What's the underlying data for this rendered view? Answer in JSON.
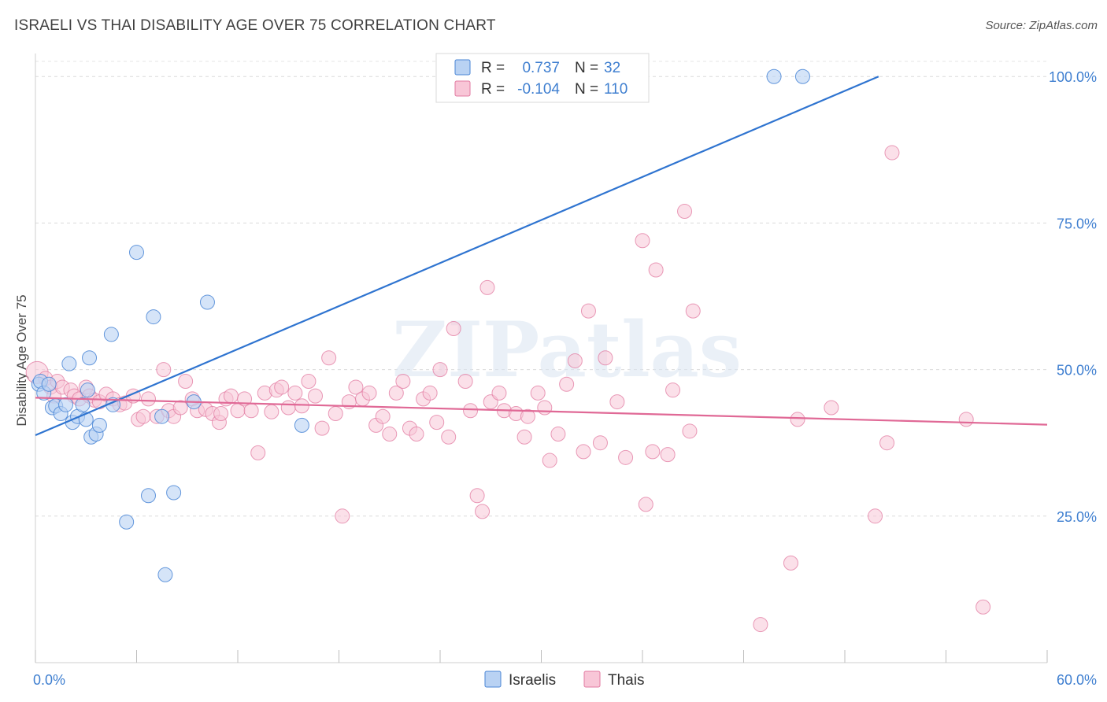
{
  "title": "ISRAELI VS THAI DISABILITY AGE OVER 75 CORRELATION CHART",
  "source": "Source: ZipAtlas.com",
  "watermark": "ZIPatlas",
  "colors": {
    "israelis": "#4a86d6",
    "israelis_fill": "#b9d2f3",
    "thais": "#e27aa0",
    "thais_fill": "#f8c6d7",
    "israelis_line": "#2f74d0",
    "thais_line": "#e06996",
    "axis_text": "#3f7fd0"
  },
  "legend": {
    "rows": [
      {
        "r_label": "R =",
        "r_value": "0.737",
        "n_label": "N =",
        "n_value": "32"
      },
      {
        "r_label": "R =",
        "r_value": "-0.104",
        "n_label": "N =",
        "n_value": "110"
      }
    ]
  },
  "bottom_legend": [
    "Israelis",
    "Thais"
  ],
  "chart_data": {
    "type": "scatter",
    "title": "ISRAELI VS THAI DISABILITY AGE OVER 75 CORRELATION CHART",
    "xlabel": "",
    "ylabel": "Disability Age Over 75",
    "xlim": [
      0,
      60
    ],
    "ylim": [
      0,
      105
    ],
    "x_tick_labels": [
      "0.0%",
      "60.0%"
    ],
    "y_ticks": [
      25,
      50,
      75,
      100
    ],
    "y_tick_labels": [
      "25.0%",
      "50.0%",
      "75.0%",
      "100.0%"
    ],
    "grid": true,
    "legend_position": "top-center",
    "series": [
      {
        "name": "Israelis",
        "trend": {
          "x": [
            0,
            50
          ],
          "y": [
            38.8,
            100.0
          ]
        },
        "points": [
          [
            0.2,
            47.5
          ],
          [
            0.3,
            48.0
          ],
          [
            0.5,
            46.0
          ],
          [
            0.8,
            47.5
          ],
          [
            1.0,
            43.5
          ],
          [
            1.2,
            43.8
          ],
          [
            1.5,
            42.5
          ],
          [
            1.8,
            44.0
          ],
          [
            2.0,
            51.0
          ],
          [
            2.2,
            41.0
          ],
          [
            2.5,
            42.0
          ],
          [
            2.8,
            44.0
          ],
          [
            3.0,
            41.5
          ],
          [
            3.1,
            46.5
          ],
          [
            3.2,
            52.0
          ],
          [
            3.3,
            38.5
          ],
          [
            3.6,
            39.0
          ],
          [
            3.8,
            40.5
          ],
          [
            4.5,
            56.0
          ],
          [
            4.6,
            44.0
          ],
          [
            5.4,
            24.0
          ],
          [
            6.0,
            70.0
          ],
          [
            6.7,
            28.5
          ],
          [
            7.0,
            59.0
          ],
          [
            7.5,
            42.0
          ],
          [
            7.7,
            15.0
          ],
          [
            8.2,
            29.0
          ],
          [
            9.4,
            44.5
          ],
          [
            10.2,
            61.5
          ],
          [
            15.8,
            40.5
          ],
          [
            43.8,
            100.0
          ],
          [
            45.5,
            100.0
          ]
        ]
      },
      {
        "name": "Thais",
        "trend": {
          "x": [
            0,
            60
          ],
          "y": [
            45.2,
            40.6
          ]
        },
        "points": [
          [
            0.1,
            49.5
          ],
          [
            0.6,
            48.5
          ],
          [
            0.9,
            47.0
          ],
          [
            1.1,
            45.5
          ],
          [
            1.3,
            48.0
          ],
          [
            1.6,
            47.0
          ],
          [
            2.1,
            46.5
          ],
          [
            2.3,
            45.5
          ],
          [
            2.6,
            45.0
          ],
          [
            3.0,
            47.0
          ],
          [
            3.2,
            45.5
          ],
          [
            3.5,
            44.8
          ],
          [
            3.8,
            44.5
          ],
          [
            4.2,
            45.8
          ],
          [
            4.6,
            45.0
          ],
          [
            5.0,
            44.0
          ],
          [
            5.3,
            44.3
          ],
          [
            5.8,
            45.5
          ],
          [
            6.1,
            41.5
          ],
          [
            6.4,
            42.0
          ],
          [
            6.7,
            45.0
          ],
          [
            7.2,
            42.0
          ],
          [
            7.6,
            50.0
          ],
          [
            7.9,
            43.0
          ],
          [
            8.2,
            42.0
          ],
          [
            8.6,
            43.5
          ],
          [
            8.9,
            48.0
          ],
          [
            9.3,
            45.0
          ],
          [
            9.6,
            43.0
          ],
          [
            10.1,
            43.2
          ],
          [
            10.5,
            42.5
          ],
          [
            10.9,
            41.0
          ],
          [
            11.3,
            45.0
          ],
          [
            11.6,
            45.5
          ],
          [
            12.0,
            43.0
          ],
          [
            12.4,
            45.0
          ],
          [
            12.8,
            43.0
          ],
          [
            13.2,
            35.8
          ],
          [
            13.6,
            46.0
          ],
          [
            14.0,
            42.8
          ],
          [
            14.3,
            46.5
          ],
          [
            14.6,
            47.0
          ],
          [
            15.0,
            43.5
          ],
          [
            15.4,
            46.0
          ],
          [
            15.8,
            43.8
          ],
          [
            16.2,
            48.0
          ],
          [
            16.6,
            45.5
          ],
          [
            17.0,
            40.0
          ],
          [
            17.4,
            52.0
          ],
          [
            17.8,
            42.5
          ],
          [
            18.2,
            25.0
          ],
          [
            18.6,
            44.5
          ],
          [
            19.0,
            47.0
          ],
          [
            19.4,
            45.0
          ],
          [
            19.8,
            46.0
          ],
          [
            20.2,
            40.5
          ],
          [
            20.6,
            42.0
          ],
          [
            21.0,
            39.0
          ],
          [
            21.4,
            46.0
          ],
          [
            21.8,
            48.0
          ],
          [
            22.2,
            40.0
          ],
          [
            22.6,
            39.0
          ],
          [
            23.0,
            45.0
          ],
          [
            23.4,
            46.0
          ],
          [
            23.8,
            41.0
          ],
          [
            24.0,
            50.0
          ],
          [
            24.5,
            38.5
          ],
          [
            24.8,
            57.0
          ],
          [
            25.5,
            48.0
          ],
          [
            25.8,
            43.0
          ],
          [
            26.2,
            28.5
          ],
          [
            26.5,
            25.8
          ],
          [
            27.0,
            44.5
          ],
          [
            27.5,
            46.0
          ],
          [
            27.8,
            43.0
          ],
          [
            28.5,
            42.5
          ],
          [
            29.0,
            38.5
          ],
          [
            29.2,
            42.0
          ],
          [
            29.8,
            46.0
          ],
          [
            30.2,
            43.5
          ],
          [
            30.5,
            34.5
          ],
          [
            31.0,
            39.0
          ],
          [
            31.5,
            47.5
          ],
          [
            32.0,
            51.5
          ],
          [
            32.5,
            36.0
          ],
          [
            32.8,
            60.0
          ],
          [
            33.5,
            37.5
          ],
          [
            33.8,
            52.0
          ],
          [
            34.5,
            44.5
          ],
          [
            35.0,
            35.0
          ],
          [
            36.0,
            72.0
          ],
          [
            36.2,
            27.0
          ],
          [
            36.6,
            36.0
          ],
          [
            36.8,
            67.0
          ],
          [
            37.5,
            35.5
          ],
          [
            37.8,
            46.5
          ],
          [
            38.5,
            77.0
          ],
          [
            38.8,
            39.5
          ],
          [
            39.0,
            60.0
          ],
          [
            43.0,
            6.5
          ],
          [
            44.8,
            17.0
          ],
          [
            45.2,
            41.5
          ],
          [
            47.2,
            43.5
          ],
          [
            49.8,
            25.0
          ],
          [
            50.5,
            37.5
          ],
          [
            50.8,
            87.0
          ],
          [
            55.2,
            41.5
          ],
          [
            56.2,
            9.5
          ],
          [
            26.8,
            64.0
          ],
          [
            11.0,
            42.5
          ]
        ]
      }
    ]
  }
}
